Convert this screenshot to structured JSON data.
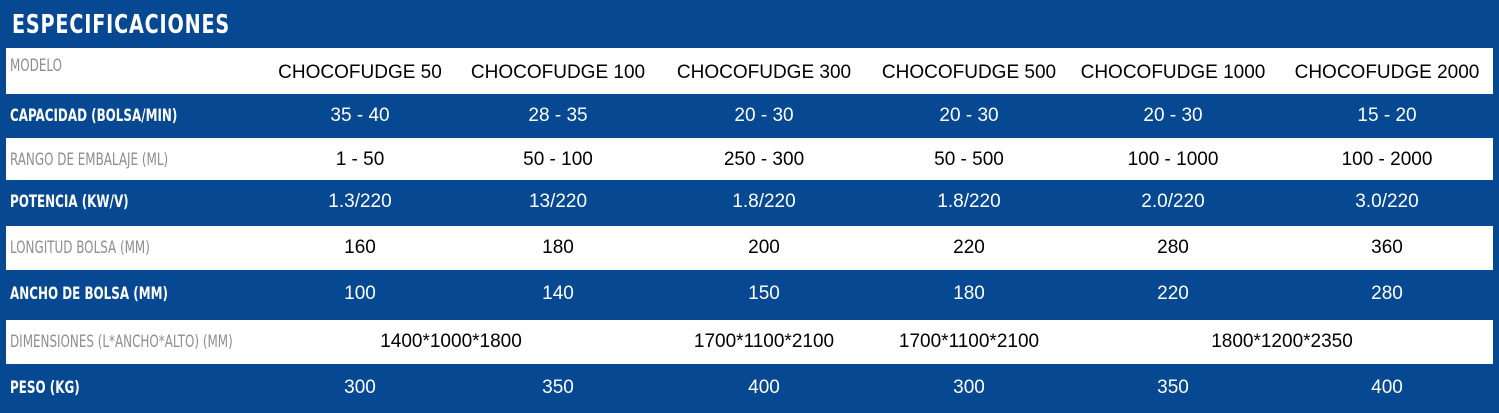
{
  "title": "ESPECIFICACIONES",
  "header": {
    "label": "MODELO",
    "models": [
      "CHOCOFUDGE 50",
      "CHOCOFUDGE 100",
      "CHOCOFUDGE 300",
      "CHOCOFUDGE 500",
      "CHOCOFUDGE 1000",
      "CHOCOFUDGE 2000"
    ]
  },
  "rows": [
    {
      "label": "CAPACIDAD (BOLSA/MIN)",
      "values": [
        "35 - 40",
        "28 - 35",
        "20 - 30",
        "20 - 30",
        "20 - 30",
        "15 - 20"
      ]
    },
    {
      "label": "RANGO DE EMBALAJE (ML)",
      "values": [
        "1 - 50",
        "50 - 100",
        "250 - 300",
        "50 - 500",
        "100 - 1000",
        "100 - 2000"
      ]
    },
    {
      "label": "POTENCIA (KW/V)",
      "values": [
        "1.3/220",
        "13/220",
        "1.8/220",
        "1.8/220",
        "2.0/220",
        "3.0/220"
      ]
    },
    {
      "label": "LONGITUD BOLSA (MM)",
      "values": [
        "160",
        "180",
        "200",
        "220",
        "280",
        "360"
      ]
    },
    {
      "label": "ANCHO DE BOLSA (MM)",
      "values": [
        "100",
        "140",
        "150",
        "180",
        "220",
        "280"
      ]
    },
    {
      "label": "DIMENSIONES (L*ANCHO*ALTO) (MM)",
      "values": [
        "1400*1000*1800",
        "1700*1100*2100",
        "1700*1100*2100",
        "1800*1200*2350"
      ]
    },
    {
      "label": "PESO (KG)",
      "values": [
        "300",
        "350",
        "400",
        "300",
        "350",
        "400"
      ]
    }
  ],
  "colors": {
    "brand_blue": "#074892",
    "light_row": "#ffffff",
    "light_label": "#8e8e8e"
  }
}
